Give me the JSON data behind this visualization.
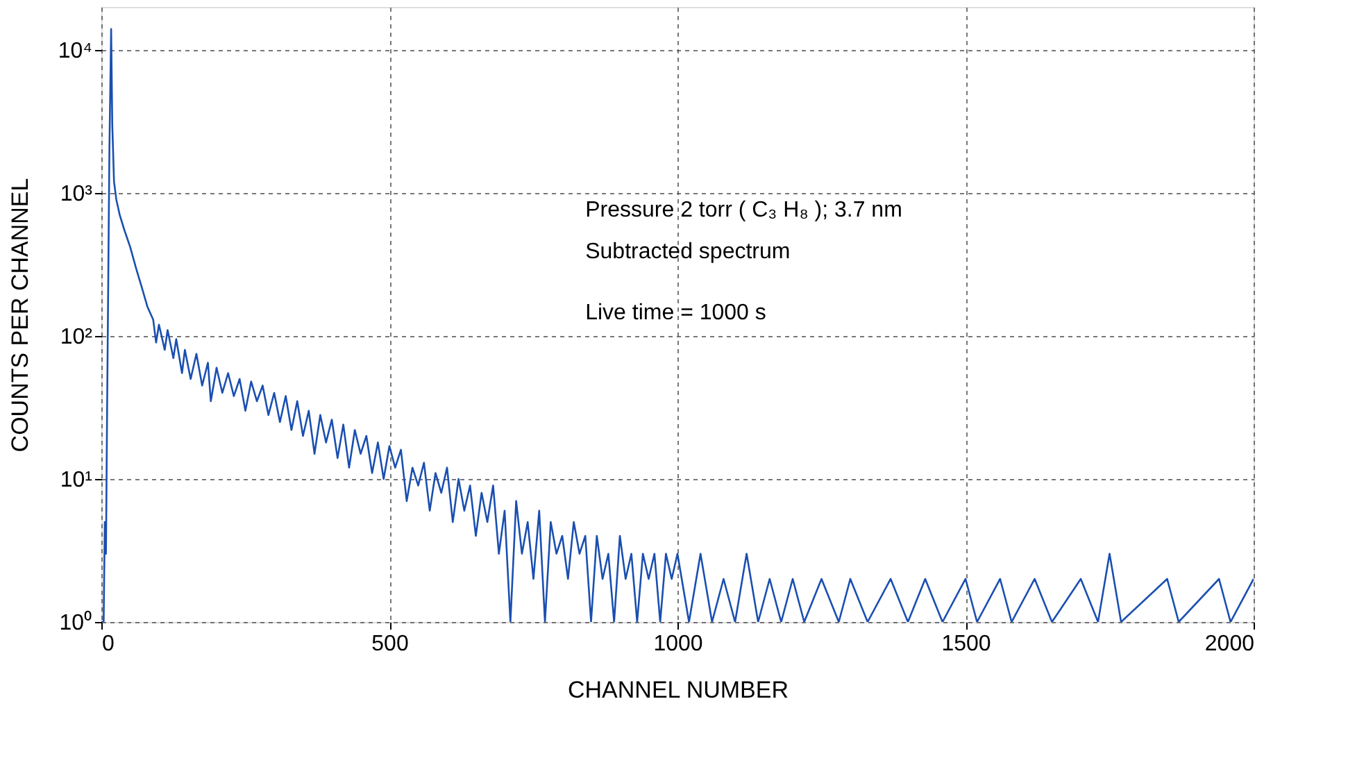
{
  "chart_data": {
    "type": "line",
    "xlabel": "CHANNEL NUMBER",
    "ylabel": "COUNTS PER CHANNEL",
    "log": "y",
    "grid": true,
    "line_style": "solid",
    "xlim": [
      0,
      2000
    ],
    "xticks": [
      0,
      500,
      1000,
      1500,
      2000
    ],
    "ylim": [
      1,
      20000
    ],
    "yticks": [
      {
        "value": 1,
        "label": "10⁰"
      },
      {
        "value": 10,
        "label": "10¹"
      },
      {
        "value": 100,
        "label": "10²"
      },
      {
        "value": 1000,
        "label": "10³"
      },
      {
        "value": 10000,
        "label": "10⁴"
      }
    ],
    "annotations": [
      "Pressure 2 torr ( C₃ H₈ ); 3.7 nm",
      "Subtracted spectrum",
      "Live time = 1000 s"
    ],
    "x": [
      0,
      4,
      6,
      8,
      10,
      14,
      17,
      19,
      22,
      26,
      32,
      40,
      50,
      60,
      70,
      80,
      90,
      95,
      100,
      110,
      115,
      125,
      130,
      140,
      145,
      155,
      165,
      175,
      185,
      190,
      200,
      210,
      220,
      230,
      240,
      250,
      260,
      270,
      280,
      290,
      300,
      310,
      320,
      330,
      340,
      350,
      360,
      370,
      380,
      390,
      400,
      410,
      420,
      430,
      440,
      450,
      460,
      470,
      480,
      490,
      500,
      510,
      520,
      530,
      540,
      550,
      560,
      570,
      580,
      590,
      600,
      610,
      620,
      630,
      640,
      650,
      660,
      670,
      680,
      690,
      700,
      710,
      720,
      730,
      740,
      750,
      760,
      770,
      780,
      790,
      800,
      810,
      820,
      830,
      840,
      850,
      860,
      870,
      880,
      890,
      900,
      910,
      920,
      930,
      940,
      950,
      960,
      970,
      980,
      990,
      1000,
      1020,
      1040,
      1060,
      1080,
      1100,
      1120,
      1140,
      1160,
      1180,
      1200,
      1220,
      1250,
      1280,
      1300,
      1330,
      1370,
      1400,
      1430,
      1460,
      1500,
      1520,
      1560,
      1580,
      1620,
      1650,
      1700,
      1730,
      1750,
      1770,
      1850,
      1870,
      1940,
      1960,
      2000
    ],
    "series": [
      {
        "color": "#1a4fb0",
        "values": [
          1,
          1,
          5,
          3,
          30,
          2000,
          14000,
          3000,
          1200,
          900,
          700,
          550,
          420,
          300,
          220,
          160,
          130,
          90,
          120,
          80,
          110,
          70,
          95,
          55,
          80,
          50,
          75,
          45,
          65,
          35,
          60,
          40,
          55,
          38,
          50,
          30,
          48,
          35,
          45,
          28,
          40,
          25,
          38,
          22,
          35,
          20,
          30,
          15,
          28,
          18,
          26,
          14,
          24,
          12,
          22,
          15,
          20,
          11,
          18,
          10,
          17,
          12,
          16,
          7,
          12,
          9,
          13,
          6,
          11,
          8,
          12,
          5,
          10,
          6,
          9,
          4,
          8,
          5,
          9,
          3,
          6,
          1,
          7,
          3,
          5,
          2,
          6,
          1,
          5,
          3,
          4,
          2,
          5,
          3,
          4,
          1,
          4,
          2,
          3,
          1,
          4,
          2,
          3,
          1,
          3,
          2,
          3,
          1,
          3,
          2,
          3,
          1,
          3,
          1,
          2,
          1,
          3,
          1,
          2,
          1,
          2,
          1,
          2,
          1,
          2,
          1,
          2,
          1,
          2,
          1,
          2,
          1,
          2,
          1,
          2,
          1,
          2,
          1,
          3,
          1,
          2,
          1,
          2,
          1,
          2
        ]
      }
    ]
  }
}
